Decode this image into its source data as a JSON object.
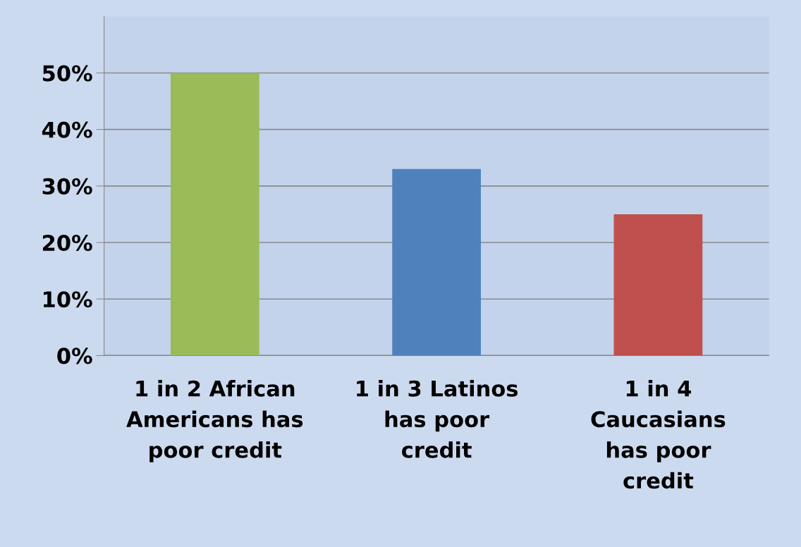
{
  "chart_data": {
    "type": "bar",
    "categories": [
      "1 in 2 African\nAmericans has\npoor credit",
      "1 in 3 Latinos\nhas poor\ncredit",
      "1 in 4\nCaucasians\nhas poor\ncredit"
    ],
    "values": [
      50,
      33,
      25
    ],
    "colors": [
      "#9bbb59",
      "#4f81bd",
      "#c0504d"
    ],
    "ylim": [
      0,
      60
    ],
    "yticks": [
      {
        "value": 0,
        "label": "0%"
      },
      {
        "value": 10,
        "label": "10%"
      },
      {
        "value": 20,
        "label": "20%"
      },
      {
        "value": 30,
        "label": "30%"
      },
      {
        "value": 40,
        "label": "40%"
      },
      {
        "value": 50,
        "label": "50%"
      }
    ],
    "grid": "y"
  }
}
